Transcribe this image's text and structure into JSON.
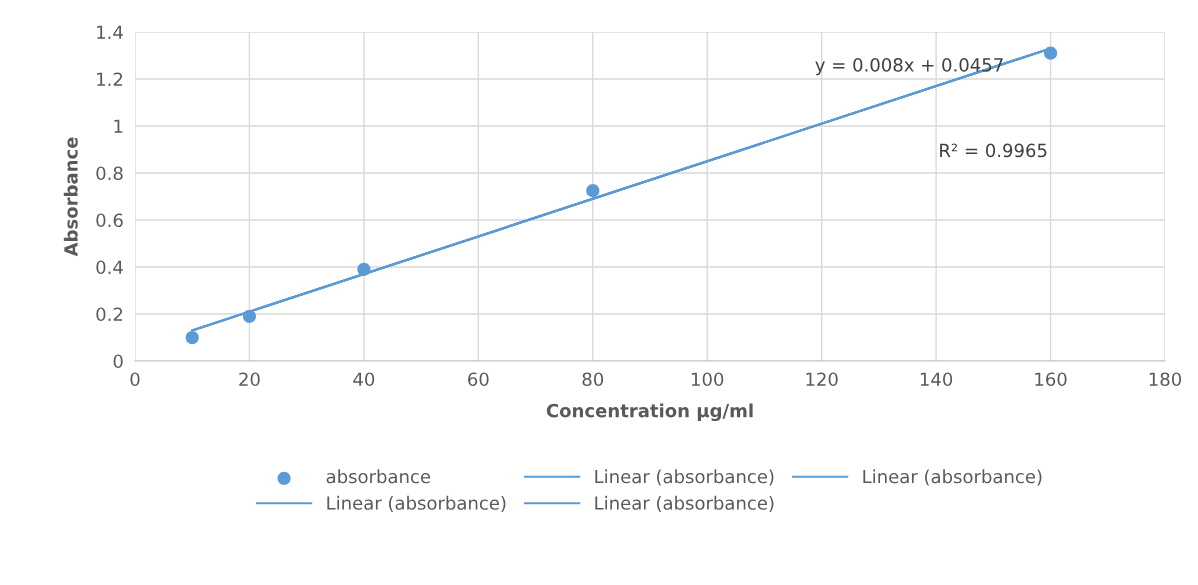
{
  "chart_data": {
    "type": "scatter",
    "xlabel": "Concentration µg/ml",
    "ylabel": "Absorbance",
    "series": [
      {
        "name": "absorbance",
        "color": "#5b9bd5",
        "x": [
          10,
          20,
          40,
          80,
          160
        ],
        "values": [
          0.1,
          0.19,
          0.39,
          0.725,
          1.31
        ],
        "marker": "circle"
      },
      {
        "name": "Linear (absorbance)",
        "type": "line",
        "color": "#5b9bd5",
        "x": [
          10,
          160
        ],
        "values": [
          0.13,
          1.33
        ],
        "marker": "none",
        "line_style": "solid"
      },
      {
        "name": "Linear (absorbance)",
        "type": "line",
        "color": "#5b9bd5",
        "x": [
          10,
          160
        ],
        "values": [
          0.13,
          1.33
        ],
        "marker": "none",
        "line_style": "solid"
      },
      {
        "name": "Linear (absorbance)",
        "type": "line",
        "color": "#5b9bd5",
        "x": [
          10,
          160
        ],
        "values": [
          0.13,
          1.33
        ],
        "marker": "none",
        "line_style": "solid"
      },
      {
        "name": "Linear (absorbance)",
        "type": "line",
        "color": "#5b9bd5",
        "x": [
          10,
          160
        ],
        "values": [
          0.13,
          1.33
        ],
        "marker": "none",
        "line_style": "solid"
      }
    ],
    "annotations": [
      "y = 0.008x + 0.0457",
      "R² = 0.9965"
    ],
    "xlim": [
      0,
      180
    ],
    "xticks": [
      0,
      20,
      40,
      60,
      80,
      100,
      120,
      140,
      160,
      180
    ],
    "ylim": [
      0,
      1.4
    ],
    "yticks": [
      0,
      {
        "value": 0.2,
        "label": "0.2"
      },
      {
        "value": 0.4,
        "label": "0.4"
      },
      {
        "value": 0.6,
        "label": "0.6"
      },
      {
        "value": 0.8,
        "label": "0.8"
      },
      1,
      {
        "value": 1.2,
        "label": "1.2"
      },
      {
        "value": 1.4,
        "label": "1.4"
      }
    ],
    "grid": true,
    "legend": "bottom"
  }
}
